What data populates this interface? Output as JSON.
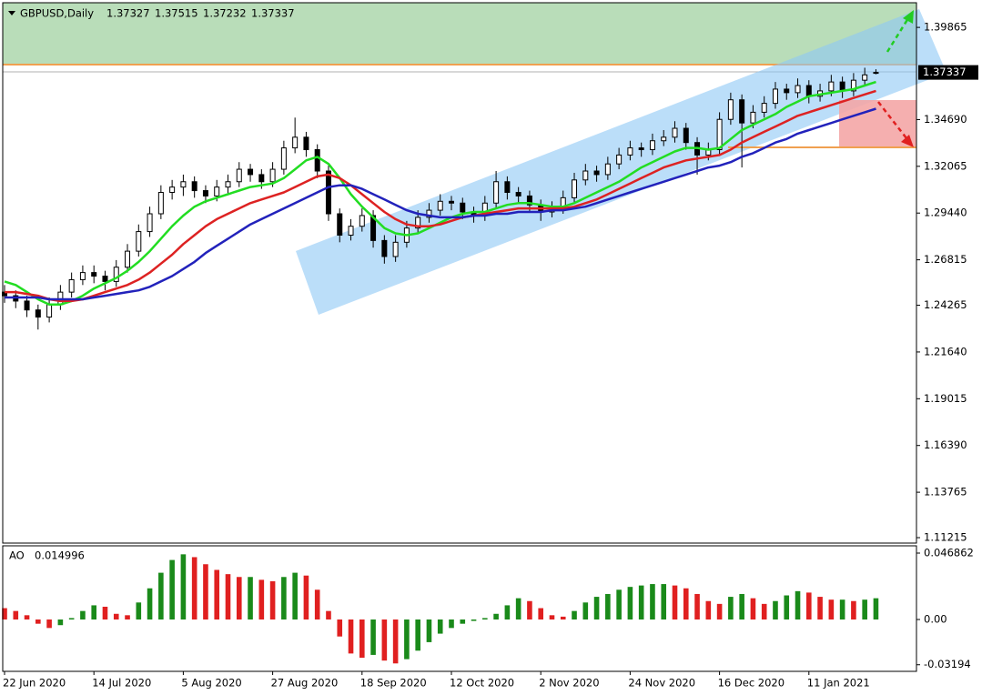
{
  "chart_data": [
    {
      "type": "candlestick",
      "title": "GBPUSD,Daily",
      "categories": [
        "22 Jun 2020",
        null,
        null,
        null,
        null,
        null,
        null,
        null,
        "14 Jul 2020",
        null,
        null,
        null,
        null,
        null,
        null,
        null,
        "5 Aug 2020",
        null,
        null,
        null,
        null,
        null,
        null,
        null,
        "27 Aug 2020",
        null,
        null,
        null,
        null,
        null,
        null,
        null,
        "18 Sep 2020",
        null,
        null,
        null,
        null,
        null,
        null,
        null,
        "12 Oct 2020",
        null,
        null,
        null,
        null,
        null,
        null,
        null,
        "2 Nov 2020",
        null,
        null,
        null,
        null,
        null,
        null,
        null,
        "24 Nov 2020",
        null,
        null,
        null,
        null,
        null,
        null,
        null,
        "16 Dec 2020",
        null,
        null,
        null,
        null,
        null,
        null,
        null,
        "11 Jan 2021",
        null,
        null,
        null,
        null,
        null,
        null
      ],
      "open": [
        1.25,
        1.248,
        1.245,
        1.24,
        1.236,
        1.243,
        1.25,
        1.257,
        1.261,
        1.259,
        1.256,
        1.264,
        1.273,
        1.284,
        1.294,
        1.306,
        1.309,
        1.312,
        1.307,
        1.304,
        1.309,
        1.312,
        1.319,
        1.316,
        1.312,
        1.319,
        1.331,
        1.337,
        1.33,
        1.318,
        1.294,
        1.282,
        1.287,
        1.293,
        1.279,
        1.27,
        1.278,
        1.286,
        1.292,
        1.296,
        1.301,
        1.3,
        1.295,
        1.293,
        1.3,
        1.312,
        1.306,
        1.304,
        1.299,
        1.295,
        1.297,
        1.303,
        1.313,
        1.318,
        1.316,
        1.322,
        1.327,
        1.331,
        1.33,
        1.335,
        1.337,
        1.342,
        1.334,
        1.327,
        1.33,
        1.347,
        1.358,
        1.345,
        1.351,
        1.356,
        1.364,
        1.362,
        1.366,
        1.36,
        1.363,
        1.368,
        1.363,
        1.369,
        1.37327
      ],
      "high": [
        1.254,
        1.251,
        1.248,
        1.243,
        1.247,
        1.254,
        1.261,
        1.265,
        1.265,
        1.262,
        1.268,
        1.277,
        1.288,
        1.298,
        1.31,
        1.313,
        1.316,
        1.315,
        1.31,
        1.313,
        1.316,
        1.323,
        1.322,
        1.319,
        1.323,
        1.335,
        1.348,
        1.34,
        1.333,
        1.321,
        1.297,
        1.291,
        1.297,
        1.296,
        1.282,
        1.282,
        1.29,
        1.296,
        1.3,
        1.305,
        1.304,
        1.303,
        1.298,
        1.304,
        1.318,
        1.315,
        1.309,
        1.307,
        1.302,
        1.301,
        1.307,
        1.317,
        1.322,
        1.321,
        1.326,
        1.331,
        1.335,
        1.334,
        1.339,
        1.341,
        1.346,
        1.345,
        1.337,
        1.334,
        1.351,
        1.362,
        1.361,
        1.355,
        1.36,
        1.368,
        1.367,
        1.37,
        1.369,
        1.367,
        1.372,
        1.371,
        1.373,
        1.376,
        1.37515
      ],
      "low": [
        1.244,
        1.241,
        1.236,
        1.229,
        1.233,
        1.24,
        1.247,
        1.254,
        1.255,
        1.251,
        1.253,
        1.261,
        1.27,
        1.281,
        1.291,
        1.302,
        1.304,
        1.303,
        1.3,
        1.301,
        1.305,
        1.309,
        1.312,
        1.308,
        1.309,
        1.316,
        1.328,
        1.326,
        1.314,
        1.29,
        1.278,
        1.279,
        1.284,
        1.275,
        1.266,
        1.267,
        1.275,
        1.283,
        1.289,
        1.293,
        1.296,
        1.291,
        1.289,
        1.29,
        1.297,
        1.302,
        1.3,
        1.295,
        1.29,
        1.292,
        1.294,
        1.3,
        1.31,
        1.312,
        1.313,
        1.319,
        1.324,
        1.326,
        1.327,
        1.332,
        1.334,
        1.33,
        1.316,
        1.324,
        1.327,
        1.344,
        1.32,
        1.342,
        1.348,
        1.353,
        1.358,
        1.359,
        1.356,
        1.357,
        1.36,
        1.359,
        1.36,
        1.366,
        1.37232
      ],
      "close": [
        1.248,
        1.245,
        1.24,
        1.236,
        1.243,
        1.25,
        1.257,
        1.261,
        1.259,
        1.256,
        1.264,
        1.273,
        1.284,
        1.294,
        1.306,
        1.309,
        1.312,
        1.307,
        1.304,
        1.309,
        1.312,
        1.319,
        1.316,
        1.312,
        1.319,
        1.331,
        1.337,
        1.33,
        1.318,
        1.294,
        1.282,
        1.287,
        1.293,
        1.279,
        1.27,
        1.278,
        1.286,
        1.292,
        1.296,
        1.301,
        1.3,
        1.295,
        1.293,
        1.3,
        1.312,
        1.306,
        1.304,
        1.299,
        1.295,
        1.297,
        1.303,
        1.313,
        1.318,
        1.316,
        1.322,
        1.327,
        1.331,
        1.33,
        1.335,
        1.337,
        1.342,
        1.334,
        1.327,
        1.33,
        1.347,
        1.358,
        1.345,
        1.351,
        1.356,
        1.364,
        1.362,
        1.366,
        1.36,
        1.363,
        1.368,
        1.363,
        1.369,
        1.372,
        1.37337
      ],
      "up_color": "#ffffff",
      "down_color": "#000000",
      "series": [
        {
          "color": "#22dd22",
          "values": [
            1.256,
            1.254,
            1.25,
            1.246,
            1.243,
            1.243,
            1.245,
            1.248,
            1.252,
            1.255,
            1.258,
            1.262,
            1.267,
            1.273,
            1.28,
            1.287,
            1.293,
            1.298,
            1.301,
            1.303,
            1.305,
            1.307,
            1.309,
            1.31,
            1.311,
            1.314,
            1.319,
            1.324,
            1.326,
            1.322,
            1.314,
            1.305,
            1.298,
            1.292,
            1.286,
            1.283,
            1.282,
            1.283,
            1.286,
            1.289,
            1.292,
            1.294,
            1.295,
            1.295,
            1.297,
            1.299,
            1.3,
            1.3,
            1.299,
            1.298,
            1.298,
            1.3,
            1.303,
            1.306,
            1.309,
            1.312,
            1.316,
            1.32,
            1.323,
            1.326,
            1.329,
            1.331,
            1.331,
            1.33,
            1.331,
            1.336,
            1.341,
            1.344,
            1.347,
            1.35,
            1.354,
            1.357,
            1.36,
            1.361,
            1.362,
            1.363,
            1.364,
            1.366,
            1.368
          ]
        },
        {
          "color": "#dd2222",
          "values": [
            1.25,
            1.25,
            1.249,
            1.248,
            1.246,
            1.245,
            1.245,
            1.246,
            1.248,
            1.25,
            1.252,
            1.254,
            1.257,
            1.261,
            1.266,
            1.271,
            1.277,
            1.282,
            1.287,
            1.291,
            1.294,
            1.297,
            1.3,
            1.302,
            1.304,
            1.306,
            1.309,
            1.312,
            1.315,
            1.316,
            1.314,
            1.31,
            1.305,
            1.3,
            1.295,
            1.291,
            1.288,
            1.287,
            1.287,
            1.288,
            1.29,
            1.292,
            1.293,
            1.294,
            1.295,
            1.296,
            1.297,
            1.297,
            1.297,
            1.297,
            1.297,
            1.298,
            1.3,
            1.302,
            1.305,
            1.308,
            1.311,
            1.314,
            1.317,
            1.32,
            1.322,
            1.324,
            1.325,
            1.326,
            1.327,
            1.33,
            1.334,
            1.337,
            1.34,
            1.343,
            1.346,
            1.349,
            1.351,
            1.353,
            1.355,
            1.357,
            1.359,
            1.361,
            1.363
          ]
        },
        {
          "color": "#2222bb",
          "values": [
            1.247,
            1.247,
            1.247,
            1.247,
            1.246,
            1.246,
            1.246,
            1.246,
            1.247,
            1.248,
            1.249,
            1.25,
            1.251,
            1.253,
            1.256,
            1.259,
            1.263,
            1.267,
            1.272,
            1.276,
            1.28,
            1.284,
            1.288,
            1.291,
            1.294,
            1.297,
            1.3,
            1.303,
            1.306,
            1.309,
            1.31,
            1.31,
            1.308,
            1.305,
            1.302,
            1.299,
            1.296,
            1.294,
            1.293,
            1.292,
            1.292,
            1.292,
            1.293,
            1.293,
            1.294,
            1.294,
            1.295,
            1.295,
            1.295,
            1.296,
            1.296,
            1.297,
            1.298,
            1.3,
            1.302,
            1.304,
            1.306,
            1.308,
            1.31,
            1.312,
            1.314,
            1.316,
            1.318,
            1.32,
            1.321,
            1.323,
            1.326,
            1.328,
            1.331,
            1.334,
            1.336,
            1.339,
            1.341,
            1.343,
            1.345,
            1.347,
            1.349,
            1.351,
            1.353
          ]
        }
      ],
      "ylim": [
        1.1091,
        1.4125
      ],
      "yticks": [
        1.39865,
        {
          "value": 1.3469,
          "label": "1.34690"
        },
        1.32065,
        {
          "value": 1.2944,
          "label": "1.29440"
        },
        1.26815,
        1.24265,
        {
          "value": 1.2164,
          "label": "1.21640"
        },
        1.19015,
        {
          "value": 1.1639,
          "label": "1.16390"
        },
        1.13765,
        1.11215
      ]
    },
    {
      "type": "bar",
      "title": "AO",
      "values": [
        0.008,
        0.006,
        0.003,
        -0.003,
        -0.006,
        -0.004,
        0.001,
        0.006,
        0.01,
        0.009,
        0.004,
        0.003,
        0.012,
        0.022,
        0.033,
        0.042,
        0.046,
        0.044,
        0.039,
        0.035,
        0.032,
        0.03,
        0.03,
        0.028,
        0.027,
        0.03,
        0.033,
        0.031,
        0.021,
        0.006,
        -0.012,
        -0.024,
        -0.027,
        -0.025,
        -0.029,
        -0.031,
        -0.028,
        -0.022,
        -0.016,
        -0.01,
        -0.006,
        -0.003,
        -0.001,
        0.001,
        0.004,
        0.01,
        0.015,
        0.013,
        0.008,
        0.003,
        0.002,
        0.006,
        0.012,
        0.016,
        0.018,
        0.021,
        0.023,
        0.024,
        0.025,
        0.025,
        0.024,
        0.022,
        0.018,
        0.013,
        0.011,
        0.016,
        0.018,
        0.015,
        0.011,
        0.013,
        0.017,
        0.02,
        0.019,
        0.016,
        0.014,
        0.014,
        0.013,
        0.014,
        0.014996
      ],
      "up_color": "#1a8a1a",
      "down_color": "#e02020",
      "ylim": [
        -0.0366,
        0.052
      ],
      "yticks": [
        0.046862,
        {
          "value": 0,
          "label": "0.00"
        },
        -0.03194
      ]
    }
  ]
}
